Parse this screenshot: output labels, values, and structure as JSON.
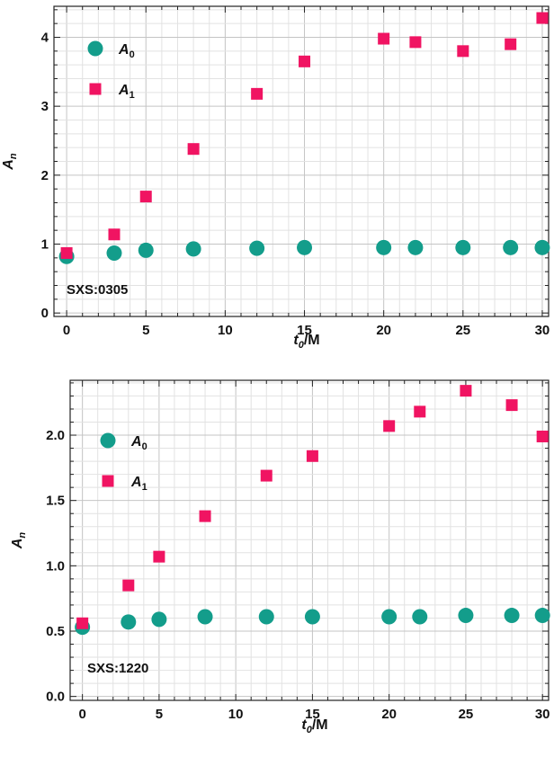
{
  "chart_data": [
    {
      "type": "scatter",
      "annotation": "SXS:0305",
      "xlabel": {
        "base": "t",
        "sub": "0",
        "suffix": "/M"
      },
      "ylabel": {
        "base": "A",
        "sub": "n"
      },
      "xlim": [
        -0.8,
        30.4
      ],
      "ylim": [
        -0.05,
        4.45
      ],
      "xticks": [
        0,
        5,
        10,
        15,
        20,
        25,
        30
      ],
      "xtick_labels": [
        "0",
        "5",
        "10",
        "15",
        "20",
        "25",
        "30"
      ],
      "yticks": [
        0,
        1,
        2,
        3,
        4
      ],
      "ytick_labels": [
        "0",
        "1",
        "2",
        "3",
        "4"
      ],
      "grid": true,
      "legend_position": "top-left",
      "series": [
        {
          "name": {
            "base": "A",
            "sub": "0"
          },
          "marker": "circle",
          "color": "#139d8b",
          "x": [
            0,
            3,
            5,
            8,
            12,
            15,
            20,
            22,
            25,
            28,
            30
          ],
          "y": [
            0.82,
            0.87,
            0.91,
            0.93,
            0.94,
            0.95,
            0.95,
            0.95,
            0.95,
            0.95,
            0.95
          ]
        },
        {
          "name": {
            "base": "A",
            "sub": "1"
          },
          "marker": "square",
          "color": "#f01462",
          "x": [
            0,
            3,
            5,
            8,
            12,
            15,
            20,
            22,
            25,
            28,
            30
          ],
          "y": [
            0.87,
            1.14,
            1.69,
            2.38,
            3.18,
            3.65,
            3.98,
            3.93,
            3.8,
            3.9,
            4.28
          ]
        }
      ]
    },
    {
      "type": "scatter",
      "annotation": "SXS:1220",
      "xlabel": {
        "base": "t",
        "sub": "0",
        "suffix": "/M"
      },
      "ylabel": {
        "base": "A",
        "sub": "n"
      },
      "xlim": [
        -0.8,
        30.4
      ],
      "ylim": [
        -0.03,
        2.42
      ],
      "xticks": [
        0,
        5,
        10,
        15,
        20,
        25,
        30
      ],
      "xtick_labels": [
        "0",
        "5",
        "10",
        "15",
        "20",
        "25",
        "30"
      ],
      "yticks": [
        0,
        0.5,
        1,
        1.5,
        2
      ],
      "ytick_labels": [
        "0.0",
        "0.5",
        "1.0",
        "1.5",
        "2.0"
      ],
      "grid": true,
      "legend_position": "top-left",
      "series": [
        {
          "name": {
            "base": "A",
            "sub": "0"
          },
          "marker": "circle",
          "color": "#139d8b",
          "x": [
            0,
            3,
            5,
            8,
            12,
            15,
            20,
            22,
            25,
            28,
            30
          ],
          "y": [
            0.53,
            0.57,
            0.59,
            0.61,
            0.61,
            0.61,
            0.61,
            0.61,
            0.62,
            0.62,
            0.62
          ]
        },
        {
          "name": {
            "base": "A",
            "sub": "1"
          },
          "marker": "square",
          "color": "#f01462",
          "x": [
            0,
            3,
            5,
            8,
            12,
            15,
            20,
            22,
            25,
            28,
            30
          ],
          "y": [
            0.56,
            0.85,
            1.07,
            1.38,
            1.69,
            1.84,
            2.07,
            2.18,
            2.34,
            2.23,
            1.99
          ]
        }
      ]
    }
  ]
}
